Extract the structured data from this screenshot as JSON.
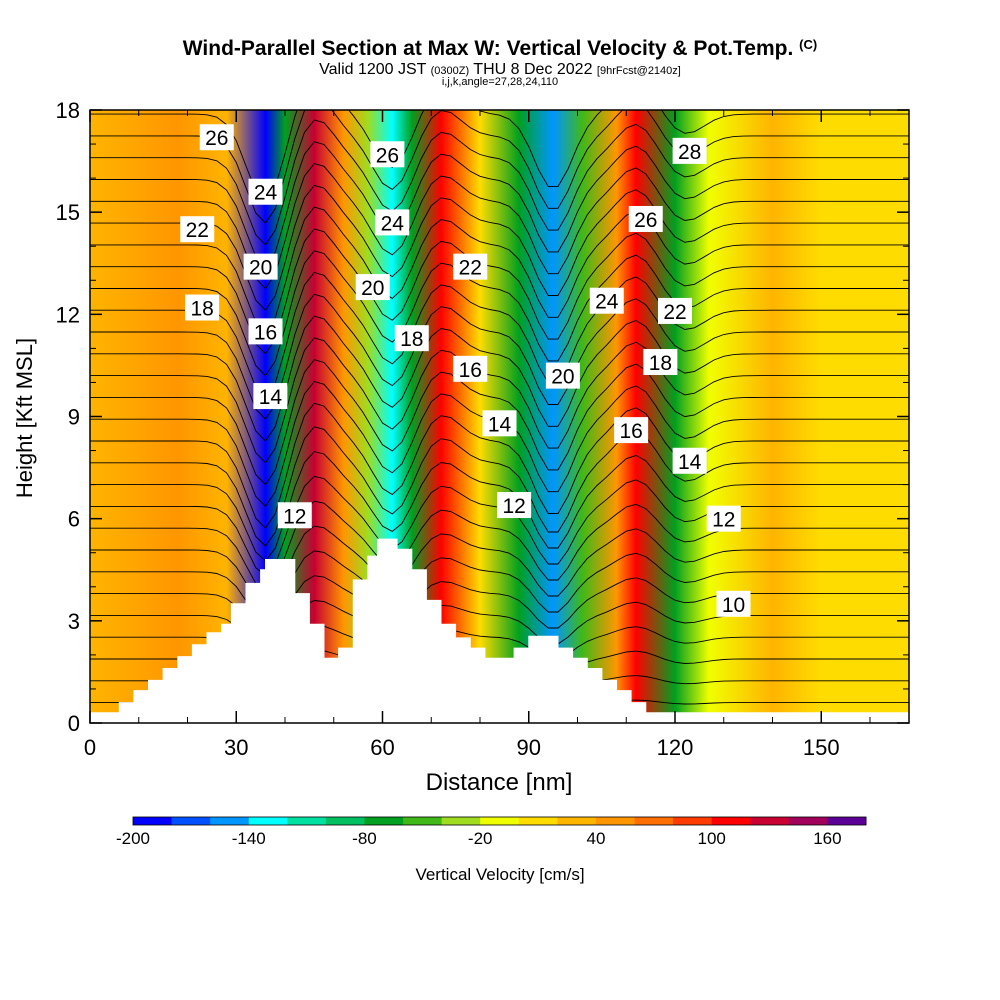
{
  "header": {
    "title": "Wind-Parallel Section at Max W: Vertical Velocity & Pot.Temp.",
    "title_mark": "(C)",
    "valid_prefix": "Valid 1200 JST",
    "valid_utc": "(0300Z)",
    "valid_date": "THU 8 Dec 2022",
    "forecast": "[9hrFcst@2140z]",
    "indices": "i,j,k,angle=27,28,24,110"
  },
  "chart_data": {
    "type": "heatmap",
    "xlabel": "Distance [nm]",
    "ylabel": "Height [Kft MSL]",
    "xlim": [
      0,
      168
    ],
    "ylim": [
      0,
      18
    ],
    "xticks": [
      0,
      30,
      60,
      90,
      120,
      150
    ],
    "yticks": [
      0,
      3,
      6,
      9,
      12,
      15,
      18
    ],
    "colorbar": {
      "label": "Vertical Velocity [cm/s]",
      "tick_labels": [
        "-200",
        "-140",
        "-80",
        "-20",
        "40",
        "100",
        "160"
      ],
      "tick_values": [
        -200,
        -140,
        -80,
        -20,
        40,
        100,
        160
      ],
      "levels": [
        -200,
        -180,
        -160,
        -140,
        -120,
        -100,
        -80,
        -60,
        -40,
        -20,
        0,
        20,
        40,
        60,
        80,
        100,
        120,
        140,
        160,
        180
      ],
      "colors": [
        "#0000ff",
        "#0050ff",
        "#0096ff",
        "#00ffff",
        "#00e0a0",
        "#00c060",
        "#00a020",
        "#40b818",
        "#a0dc20",
        "#f0ff00",
        "#ffdc00",
        "#ffb400",
        "#ff9600",
        "#ff6e00",
        "#ff3c00",
        "#ff0000",
        "#c80032",
        "#a0005a",
        "#5a0096"
      ]
    },
    "vertical_velocity_bands": [
      {
        "x": 0,
        "value": 25
      },
      {
        "x": 18,
        "value": 45
      },
      {
        "x": 28,
        "value": 20
      },
      {
        "x": 36,
        "value": -190
      },
      {
        "x": 40,
        "value": -80
      },
      {
        "x": 46,
        "value": 120
      },
      {
        "x": 52,
        "value": 40
      },
      {
        "x": 57,
        "value": -30
      },
      {
        "x": 62,
        "value": -140
      },
      {
        "x": 66,
        "value": -70
      },
      {
        "x": 72,
        "value": 110
      },
      {
        "x": 80,
        "value": 10
      },
      {
        "x": 88,
        "value": -70
      },
      {
        "x": 95,
        "value": -160
      },
      {
        "x": 101,
        "value": -60
      },
      {
        "x": 108,
        "value": 40
      },
      {
        "x": 112,
        "value": 105
      },
      {
        "x": 120,
        "value": -80
      },
      {
        "x": 127,
        "value": -10
      },
      {
        "x": 140,
        "value": 20
      },
      {
        "x": 150,
        "value": 5
      },
      {
        "x": 168,
        "value": 10
      }
    ],
    "contour_labels": [
      {
        "text": "26",
        "x": 26,
        "y": 17.2
      },
      {
        "text": "24",
        "x": 36,
        "y": 15.6
      },
      {
        "text": "22",
        "x": 22,
        "y": 14.5
      },
      {
        "text": "20",
        "x": 35,
        "y": 13.4
      },
      {
        "text": "18",
        "x": 23,
        "y": 12.2
      },
      {
        "text": "16",
        "x": 36,
        "y": 11.5
      },
      {
        "text": "14",
        "x": 37,
        "y": 9.6
      },
      {
        "text": "12",
        "x": 42,
        "y": 6.1
      },
      {
        "text": "26",
        "x": 61,
        "y": 16.7
      },
      {
        "text": "24",
        "x": 62,
        "y": 14.7
      },
      {
        "text": "20",
        "x": 58,
        "y": 12.8
      },
      {
        "text": "18",
        "x": 66,
        "y": 11.3
      },
      {
        "text": "22",
        "x": 78,
        "y": 13.4
      },
      {
        "text": "16",
        "x": 78,
        "y": 10.4
      },
      {
        "text": "14",
        "x": 84,
        "y": 8.8
      },
      {
        "text": "12",
        "x": 87,
        "y": 6.4
      },
      {
        "text": "20",
        "x": 97,
        "y": 10.2
      },
      {
        "text": "24",
        "x": 106,
        "y": 12.4
      },
      {
        "text": "26",
        "x": 114,
        "y": 14.8
      },
      {
        "text": "28",
        "x": 123,
        "y": 16.8
      },
      {
        "text": "22",
        "x": 120,
        "y": 12.1
      },
      {
        "text": "18",
        "x": 117,
        "y": 10.6
      },
      {
        "text": "16",
        "x": 111,
        "y": 8.6
      },
      {
        "text": "14",
        "x": 123,
        "y": 7.7
      },
      {
        "text": "12",
        "x": 130,
        "y": 6.0
      },
      {
        "text": "10",
        "x": 132,
        "y": 3.5
      }
    ],
    "terrain": [
      {
        "x": 0,
        "h": 0.3
      },
      {
        "x": 6,
        "h": 0.3
      },
      {
        "x": 6,
        "h": 0.6
      },
      {
        "x": 9,
        "h": 0.6
      },
      {
        "x": 9,
        "h": 0.95
      },
      {
        "x": 12,
        "h": 0.95
      },
      {
        "x": 12,
        "h": 1.25
      },
      {
        "x": 15,
        "h": 1.25
      },
      {
        "x": 15,
        "h": 1.6
      },
      {
        "x": 18,
        "h": 1.6
      },
      {
        "x": 18,
        "h": 1.95
      },
      {
        "x": 21,
        "h": 1.95
      },
      {
        "x": 21,
        "h": 2.3
      },
      {
        "x": 24,
        "h": 2.3
      },
      {
        "x": 24,
        "h": 2.65
      },
      {
        "x": 27,
        "h": 2.65
      },
      {
        "x": 27,
        "h": 2.9
      },
      {
        "x": 29,
        "h": 2.9
      },
      {
        "x": 29,
        "h": 3.5
      },
      {
        "x": 32,
        "h": 3.5
      },
      {
        "x": 32,
        "h": 4.1
      },
      {
        "x": 35,
        "h": 4.1
      },
      {
        "x": 35,
        "h": 4.5
      },
      {
        "x": 36,
        "h": 4.5
      },
      {
        "x": 36,
        "h": 4.8
      },
      {
        "x": 42,
        "h": 4.8
      },
      {
        "x": 42,
        "h": 3.8
      },
      {
        "x": 45,
        "h": 3.8
      },
      {
        "x": 45,
        "h": 2.9
      },
      {
        "x": 48,
        "h": 2.9
      },
      {
        "x": 48,
        "h": 1.9
      },
      {
        "x": 51,
        "h": 1.9
      },
      {
        "x": 51,
        "h": 2.2
      },
      {
        "x": 54,
        "h": 2.2
      },
      {
        "x": 54,
        "h": 4.2
      },
      {
        "x": 57,
        "h": 4.2
      },
      {
        "x": 57,
        "h": 4.9
      },
      {
        "x": 59,
        "h": 4.9
      },
      {
        "x": 59,
        "h": 5.4
      },
      {
        "x": 63,
        "h": 5.4
      },
      {
        "x": 63,
        "h": 5.1
      },
      {
        "x": 66,
        "h": 5.1
      },
      {
        "x": 66,
        "h": 4.5
      },
      {
        "x": 69,
        "h": 4.5
      },
      {
        "x": 69,
        "h": 3.6
      },
      {
        "x": 72,
        "h": 3.6
      },
      {
        "x": 72,
        "h": 2.9
      },
      {
        "x": 75,
        "h": 2.9
      },
      {
        "x": 75,
        "h": 2.5
      },
      {
        "x": 78,
        "h": 2.5
      },
      {
        "x": 78,
        "h": 2.2
      },
      {
        "x": 81,
        "h": 2.2
      },
      {
        "x": 81,
        "h": 1.9
      },
      {
        "x": 87,
        "h": 1.9
      },
      {
        "x": 87,
        "h": 2.2
      },
      {
        "x": 90,
        "h": 2.2
      },
      {
        "x": 90,
        "h": 2.55
      },
      {
        "x": 96,
        "h": 2.55
      },
      {
        "x": 96,
        "h": 2.2
      },
      {
        "x": 99,
        "h": 2.2
      },
      {
        "x": 99,
        "h": 1.9
      },
      {
        "x": 102,
        "h": 1.9
      },
      {
        "x": 102,
        "h": 1.6
      },
      {
        "x": 105,
        "h": 1.6
      },
      {
        "x": 105,
        "h": 1.25
      },
      {
        "x": 108,
        "h": 1.25
      },
      {
        "x": 108,
        "h": 0.95
      },
      {
        "x": 111,
        "h": 0.95
      },
      {
        "x": 111,
        "h": 0.6
      },
      {
        "x": 114,
        "h": 0.6
      },
      {
        "x": 114,
        "h": 0.3
      },
      {
        "x": 168,
        "h": 0.3
      }
    ]
  }
}
